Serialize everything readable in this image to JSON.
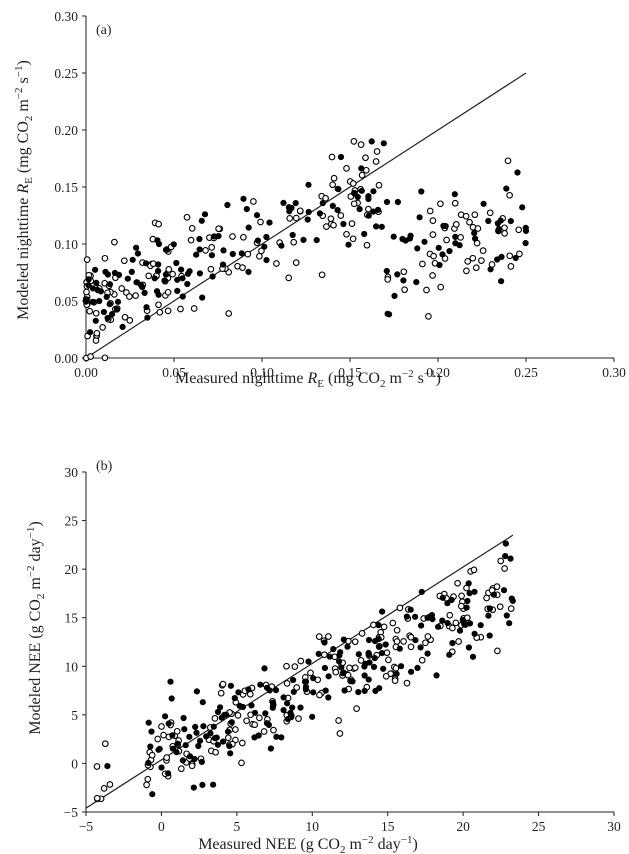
{
  "chart_data": [
    {
      "type": "scatter",
      "panel_label": "(a)",
      "xlabel": {
        "pre": "Measured nighttime ",
        "sym": "R",
        "sub": "E",
        "mid": " (mg CO",
        "sub2": "2",
        "mid2": " m",
        "sup1": "−2",
        "mid3": " s",
        "sup2": "−1",
        "post": ")"
      },
      "ylabel": {
        "pre": "Modeled nighttime ",
        "sym": "R",
        "sub": "E",
        "mid": " (mg CO",
        "sub2": "2",
        "mid2": " m",
        "sup1": "−2",
        "mid3": " s",
        "sup2": "−1",
        "post": ")"
      },
      "xlim": [
        0,
        0.3
      ],
      "ylim": [
        0,
        0.3
      ],
      "xticks": [
        "0.00",
        "0.05",
        "0.10",
        "0.15",
        "0.20",
        "0.25",
        "0.30"
      ],
      "yticks": [
        "0.00",
        "0.05",
        "0.10",
        "0.15",
        "0.20",
        "0.25",
        "0.30"
      ],
      "reference_line": {
        "x": [
          0,
          0.25
        ],
        "y": [
          0,
          0.25
        ]
      },
      "generator": {
        "seed": 1717,
        "n_filled": 170,
        "n_open": 190,
        "x_range": [
          0.0,
          0.25
        ],
        "model": "y = 0.055 + 0.55x (fit) with noise 0.025"
      },
      "series": [
        {
          "name": "",
          "marker": "filled",
          "color": "#000000"
        },
        {
          "name": "",
          "marker": "open",
          "color": "#000000"
        }
      ]
    },
    {
      "type": "scatter",
      "panel_label": "(b)",
      "xlabel": {
        "pre": "Measured NEE (g CO",
        "sub2": "2",
        "mid2": " m",
        "sup1": "−2",
        "mid3": " day",
        "sup2": "−1",
        "post": ")"
      },
      "ylabel": {
        "pre": "Modeled NEE (g CO",
        "sub2": "2",
        "mid2": " m",
        "sup1": "−2",
        "mid3": " day",
        "sup2": "−1",
        "post": ")"
      },
      "xlim": [
        -5,
        30
      ],
      "ylim": [
        -5,
        30
      ],
      "xticks": [
        "−5",
        "0",
        "5",
        "10",
        "15",
        "20",
        "25",
        "30"
      ],
      "yticks": [
        "−5",
        "0",
        "5",
        "10",
        "15",
        "20",
        "25",
        "30"
      ],
      "reference_line": {
        "x": [
          -5,
          23.3
        ],
        "y": [
          -4.6,
          23.5
        ]
      },
      "generator": {
        "seed": 4242,
        "n_filled": 190,
        "n_open": 190,
        "x_range": [
          -4.8,
          23.3
        ],
        "model": "y = 0.6 + 0.72x with noise 2.0"
      },
      "series": [
        {
          "name": "",
          "marker": "filled",
          "color": "#000000"
        },
        {
          "name": "",
          "marker": "open",
          "color": "#000000"
        }
      ]
    }
  ]
}
